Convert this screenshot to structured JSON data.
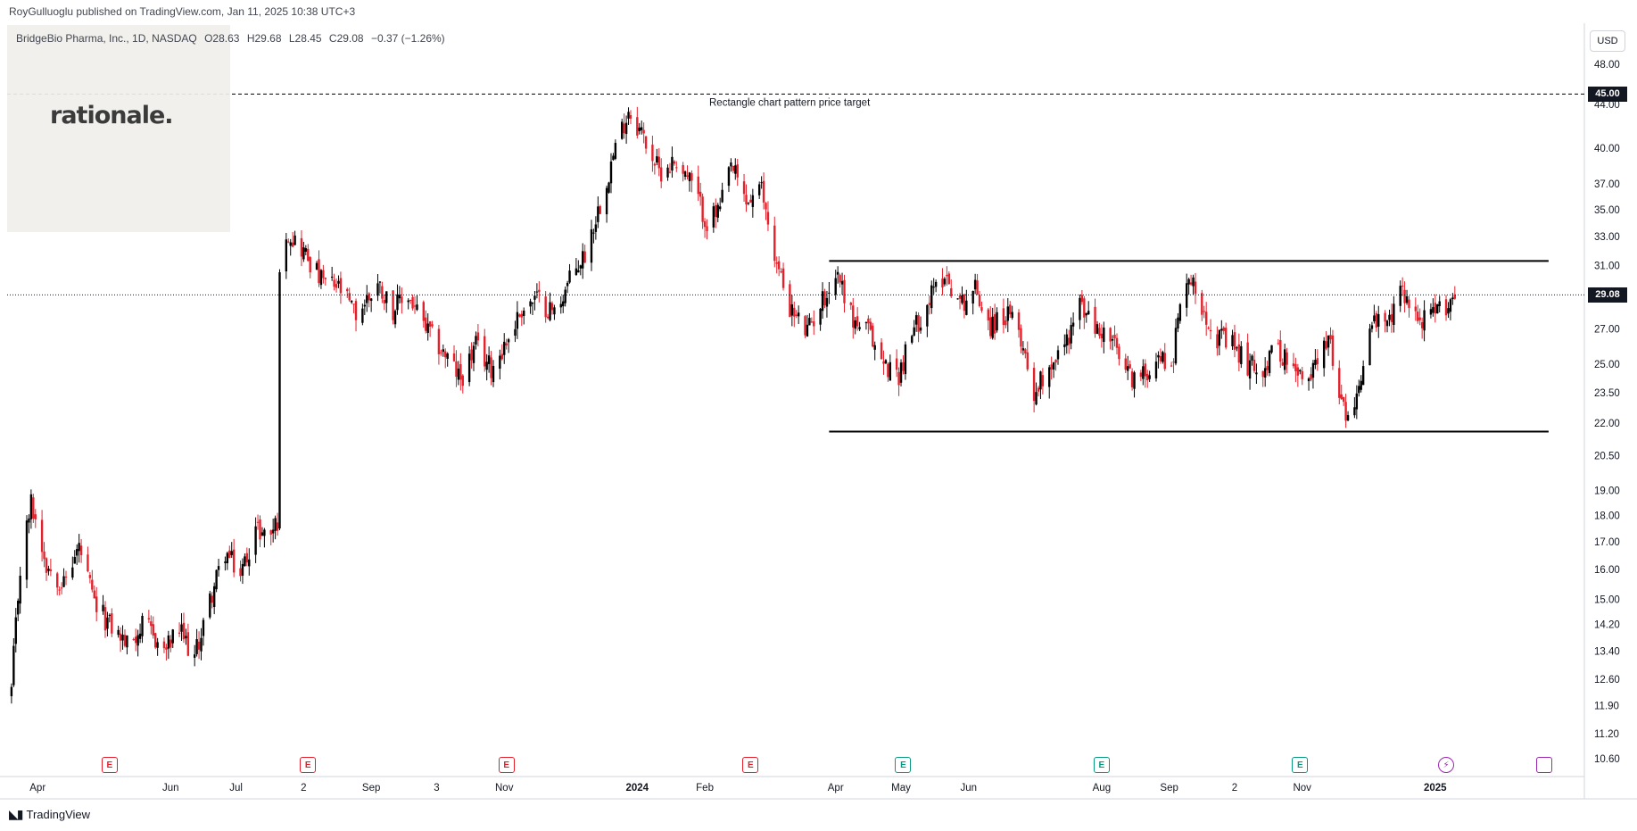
{
  "header": {
    "published_by": "RoyGulluoglu published on TradingView.com, Jan 11, 2025 10:38 UTC+3"
  },
  "symbol": {
    "name": "BridgeBio Pharma, Inc., 1D, NASDAQ",
    "open": "O28.63",
    "high": "H29.68",
    "low": "L28.45",
    "close": "C29.08",
    "change": "−0.37 (−1.26%)"
  },
  "logo": {
    "text": "rationale."
  },
  "currency": "USD",
  "footer": {
    "brand": "TradingView"
  },
  "colors": {
    "up": "#000000",
    "down": "#e5202a",
    "grid": "#ffffff",
    "earnings_red": "#e5202a",
    "earnings_green": "#089981",
    "dividend_purple": "#9c27b0"
  },
  "annotations": {
    "target_label": "Rectangle chart pattern price target",
    "target_price": "45.00",
    "last_price": "29.08"
  },
  "events": [
    {
      "type": "earnings-past",
      "symbol": "E",
      "date": "2023-05-04"
    },
    {
      "type": "earnings-past",
      "symbol": "E",
      "date": "2023-08-03"
    },
    {
      "type": "earnings-past",
      "symbol": "E",
      "date": "2023-11-02"
    },
    {
      "type": "earnings-past",
      "symbol": "E",
      "date": "2024-02-22"
    },
    {
      "type": "earnings-past",
      "symbol": "E",
      "date": "2024-05-02"
    },
    {
      "type": "earnings-past",
      "symbol": "E",
      "date": "2024-08-01"
    },
    {
      "type": "earnings-past",
      "symbol": "E",
      "date": "2024-10-31"
    },
    {
      "type": "dividend",
      "symbol": "⚡",
      "date": "2025-01-06"
    },
    {
      "type": "upcoming",
      "symbol": "",
      "date": "2025-02-20"
    }
  ],
  "chart_data": {
    "type": "candlestick",
    "title": "BridgeBio Pharma, Inc., 1D, NASDAQ",
    "y_scale": "log",
    "ylim": [
      10.2,
      52.5
    ],
    "y_ticks": [
      "48.00",
      "44.00",
      "40.00",
      "37.00",
      "35.00",
      "33.00",
      "31.00",
      "27.00",
      "25.00",
      "23.50",
      "22.00",
      "20.50",
      "19.00",
      "18.00",
      "17.00",
      "16.00",
      "15.00",
      "14.20",
      "13.40",
      "12.60",
      "11.90",
      "11.20",
      "10.60"
    ],
    "x_ticks": [
      "Apr",
      "Jun",
      "Jul",
      "2",
      "Sep",
      "3",
      "Nov",
      "2024",
      "Feb",
      "Apr",
      "May",
      "Jun",
      "Aug",
      "Sep",
      "2",
      "Nov",
      "2025"
    ],
    "x_tick_dates": [
      "2023-04-01",
      "2023-06-01",
      "2023-07-01",
      "2023-08-01",
      "2023-09-01",
      "2023-10-01",
      "2023-11-01",
      "2024-01-01",
      "2024-02-01",
      "2024-04-01",
      "2024-05-01",
      "2024-06-01",
      "2024-08-01",
      "2024-09-01",
      "2024-10-01",
      "2024-11-01",
      "2025-01-01"
    ],
    "xlim": [
      "2023-03-18",
      "2025-03-10"
    ],
    "anchors": [
      [
        "2023-03-20",
        12.3
      ],
      [
        "2023-03-24",
        16.0
      ],
      [
        "2023-03-29",
        18.5
      ],
      [
        "2023-04-05",
        16.2
      ],
      [
        "2023-04-13",
        15.5
      ],
      [
        "2023-04-20",
        16.8
      ],
      [
        "2023-04-27",
        14.8
      ],
      [
        "2023-05-04",
        14.2
      ],
      [
        "2023-05-12",
        13.6
      ],
      [
        "2023-05-20",
        14.2
      ],
      [
        "2023-05-29",
        13.4
      ],
      [
        "2023-06-05",
        14.0
      ],
      [
        "2023-06-12",
        13.2
      ],
      [
        "2023-06-20",
        15.2
      ],
      [
        "2023-06-26",
        16.6
      ],
      [
        "2023-07-03",
        15.8
      ],
      [
        "2023-07-10",
        17.5
      ],
      [
        "2023-07-16",
        17.2
      ],
      [
        "2023-07-20",
        17.8
      ],
      [
        "2023-07-21",
        30.0
      ],
      [
        "2023-07-24",
        33.5
      ],
      [
        "2023-08-01",
        32.0
      ],
      [
        "2023-08-09",
        30.0
      ],
      [
        "2023-08-17",
        29.5
      ],
      [
        "2023-08-25",
        27.8
      ],
      [
        "2023-09-04",
        29.8
      ],
      [
        "2023-09-11",
        28.2
      ],
      [
        "2023-09-18",
        29.0
      ],
      [
        "2023-09-26",
        27.0
      ],
      [
        "2023-10-05",
        25.5
      ],
      [
        "2023-10-12",
        24.2
      ],
      [
        "2023-10-19",
        26.0
      ],
      [
        "2023-10-26",
        24.8
      ],
      [
        "2023-11-03",
        26.5
      ],
      [
        "2023-11-09",
        28.2
      ],
      [
        "2023-11-16",
        28.8
      ],
      [
        "2023-11-24",
        28.0
      ],
      [
        "2023-12-01",
        30.0
      ],
      [
        "2023-12-08",
        31.8
      ],
      [
        "2023-12-15",
        35.5
      ],
      [
        "2023-12-22",
        40.0
      ],
      [
        "2023-12-28",
        43.5
      ],
      [
        "2024-01-04",
        41.0
      ],
      [
        "2024-01-11",
        38.0
      ],
      [
        "2024-01-19",
        39.0
      ],
      [
        "2024-01-26",
        37.0
      ],
      [
        "2024-02-02",
        34.0
      ],
      [
        "2024-02-08",
        35.0
      ],
      [
        "2024-02-13",
        38.5
      ],
      [
        "2024-02-20",
        35.5
      ],
      [
        "2024-02-27",
        36.5
      ],
      [
        "2024-03-05",
        31.0
      ],
      [
        "2024-03-12",
        28.0
      ],
      [
        "2024-03-19",
        26.8
      ],
      [
        "2024-03-26",
        28.8
      ],
      [
        "2024-04-02",
        30.5
      ],
      [
        "2024-04-09",
        27.5
      ],
      [
        "2024-04-16",
        26.8
      ],
      [
        "2024-04-23",
        25.0
      ],
      [
        "2024-04-30",
        24.5
      ],
      [
        "2024-05-07",
        27.0
      ],
      [
        "2024-05-14",
        28.8
      ],
      [
        "2024-05-21",
        30.5
      ],
      [
        "2024-05-28",
        28.5
      ],
      [
        "2024-06-04",
        29.5
      ],
      [
        "2024-06-11",
        27.2
      ],
      [
        "2024-06-18",
        27.8
      ],
      [
        "2024-06-24",
        27.0
      ],
      [
        "2024-07-01",
        23.5
      ],
      [
        "2024-07-08",
        25.0
      ],
      [
        "2024-07-15",
        26.0
      ],
      [
        "2024-07-22",
        28.5
      ],
      [
        "2024-07-29",
        27.0
      ],
      [
        "2024-08-05",
        26.5
      ],
      [
        "2024-08-12",
        24.5
      ],
      [
        "2024-08-19",
        24.2
      ],
      [
        "2024-08-26",
        25.5
      ],
      [
        "2024-09-02",
        25.0
      ],
      [
        "2024-09-09",
        30.5
      ],
      [
        "2024-09-16",
        28.5
      ],
      [
        "2024-09-23",
        26.5
      ],
      [
        "2024-09-30",
        26.0
      ],
      [
        "2024-10-07",
        25.0
      ],
      [
        "2024-10-14",
        24.8
      ],
      [
        "2024-10-21",
        26.0
      ],
      [
        "2024-10-28",
        24.5
      ],
      [
        "2024-11-04",
        24.0
      ],
      [
        "2024-11-11",
        26.8
      ],
      [
        "2024-11-15",
        25.5
      ],
      [
        "2024-11-20",
        22.5
      ],
      [
        "2024-11-26",
        23.3
      ],
      [
        "2024-12-03",
        27.5
      ],
      [
        "2024-12-10",
        27.0
      ],
      [
        "2024-12-17",
        29.5
      ],
      [
        "2024-12-24",
        27.5
      ],
      [
        "2024-12-31",
        27.8
      ],
      [
        "2025-01-06",
        28.5
      ],
      [
        "2025-01-10",
        29.08
      ]
    ],
    "rectangle": {
      "top": 31.3,
      "bottom": 21.6,
      "start": "2024-03-29",
      "end": "2025-02-22"
    }
  }
}
